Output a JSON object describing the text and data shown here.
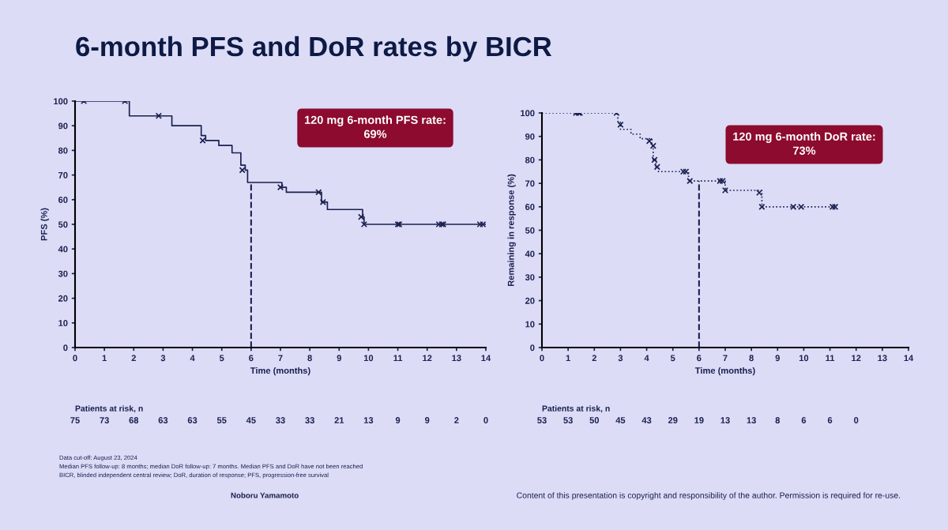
{
  "chart_data": [
    {
      "type": "step",
      "title": "6-month PFS and DoR rates by BICR",
      "xlabel": "Time (months)",
      "ylabel": "PFS (%)",
      "xlim": [
        0,
        14
      ],
      "ylim": [
        0,
        100
      ],
      "xticks": [
        0,
        1,
        2,
        3,
        4,
        5,
        6,
        7,
        8,
        9,
        10,
        11,
        12,
        13,
        14
      ],
      "yticks": [
        0,
        10,
        20,
        30,
        40,
        50,
        60,
        70,
        80,
        90,
        100
      ],
      "series": [
        {
          "color": "#1a2050",
          "line_style": "solid",
          "x": [
            0,
            1.85,
            3.3,
            4.3,
            4.45,
            4.9,
            5.35,
            5.65,
            5.8,
            5.88,
            7.05,
            7.2,
            8.4,
            8.6,
            9.8,
            9.85,
            14
          ],
          "values": [
            100,
            94,
            90,
            86,
            84,
            82,
            79,
            74,
            72,
            67,
            65,
            63,
            59,
            56,
            53,
            50,
            50
          ]
        },
        {
          "type": "scatter",
          "color": "#1a2050",
          "marker": "cross",
          "x": [
            0.3,
            1.7,
            2.85,
            4.35,
            5.7,
            7.0,
            8.3,
            8.45,
            9.75,
            9.85,
            11,
            11.05,
            12.4,
            12.5,
            12.55,
            13.8,
            13.9
          ],
          "values": [
            100,
            100,
            94,
            84,
            72,
            65,
            63,
            59,
            53,
            50,
            50,
            50,
            50,
            50,
            50,
            50,
            50
          ]
        }
      ],
      "ref_lines": [
        {
          "axis": "x",
          "value": 6,
          "color": "#1a2050",
          "line_style": "dashed"
        }
      ],
      "annotations": [
        "120 mg 6-month PFS rate:\n69%",
        "Patients at risk, n",
        "75 73 68 63 63 55 45 33 33 21 13 9 9 2 0",
        "Data cut-off: August 23, 2024",
        "Median PFS follow-up: 8 months; median DoR follow-up: 7 months. Median PFS and DoR have not been reached",
        "BICR, blinded independent central review; DoR, duration of response; PFS, progression-free survival",
        "Noboru Yamamoto"
      ]
    },
    {
      "type": "step",
      "xlabel": "Time (months)",
      "ylabel": "Remaining in response (%)",
      "xlim": [
        0,
        14
      ],
      "ylim": [
        0,
        100
      ],
      "xticks": [
        0,
        1,
        2,
        3,
        4,
        5,
        6,
        7,
        8,
        9,
        10,
        11,
        12,
        13,
        14
      ],
      "yticks": [
        0,
        10,
        20,
        30,
        40,
        50,
        60,
        70,
        80,
        90,
        100
      ],
      "series": [
        {
          "color": "#1a2050",
          "line_style": "dotted",
          "x": [
            0,
            2.9,
            3.0,
            3.4,
            3.75,
            4.2,
            4.25,
            4.35,
            4.45,
            5.6,
            7.0,
            8.4,
            11.2
          ],
          "values": [
            100,
            96,
            93,
            91,
            89,
            86,
            80,
            77,
            75,
            71,
            67,
            60,
            60
          ]
        },
        {
          "type": "scatter",
          "color": "#1a2050",
          "marker": "cross",
          "x": [
            1.3,
            1.4,
            1.45,
            2.85,
            3.0,
            4.1,
            4.25,
            4.3,
            4.4,
            5.4,
            5.5,
            5.65,
            6.8,
            6.9,
            7.0,
            8.3,
            8.4,
            9.6,
            9.9,
            11.1,
            11.2
          ],
          "values": [
            100,
            100,
            100,
            100,
            95,
            88,
            86,
            80,
            77,
            75,
            75,
            71,
            71,
            71,
            67,
            66,
            60,
            60,
            60,
            60,
            60
          ]
        }
      ],
      "ref_lines": [
        {
          "axis": "x",
          "value": 6,
          "color": "#1a2050",
          "line_style": "dashed"
        }
      ],
      "annotations": [
        "120 mg 6-month DoR rate:\n73%",
        "Patients at risk, n",
        "53 53 50 45 43 29 19 13 13 8 6 6 0",
        "Content of this presentation is copyright and responsibility of the author. Permission is required for re-use."
      ]
    }
  ]
}
